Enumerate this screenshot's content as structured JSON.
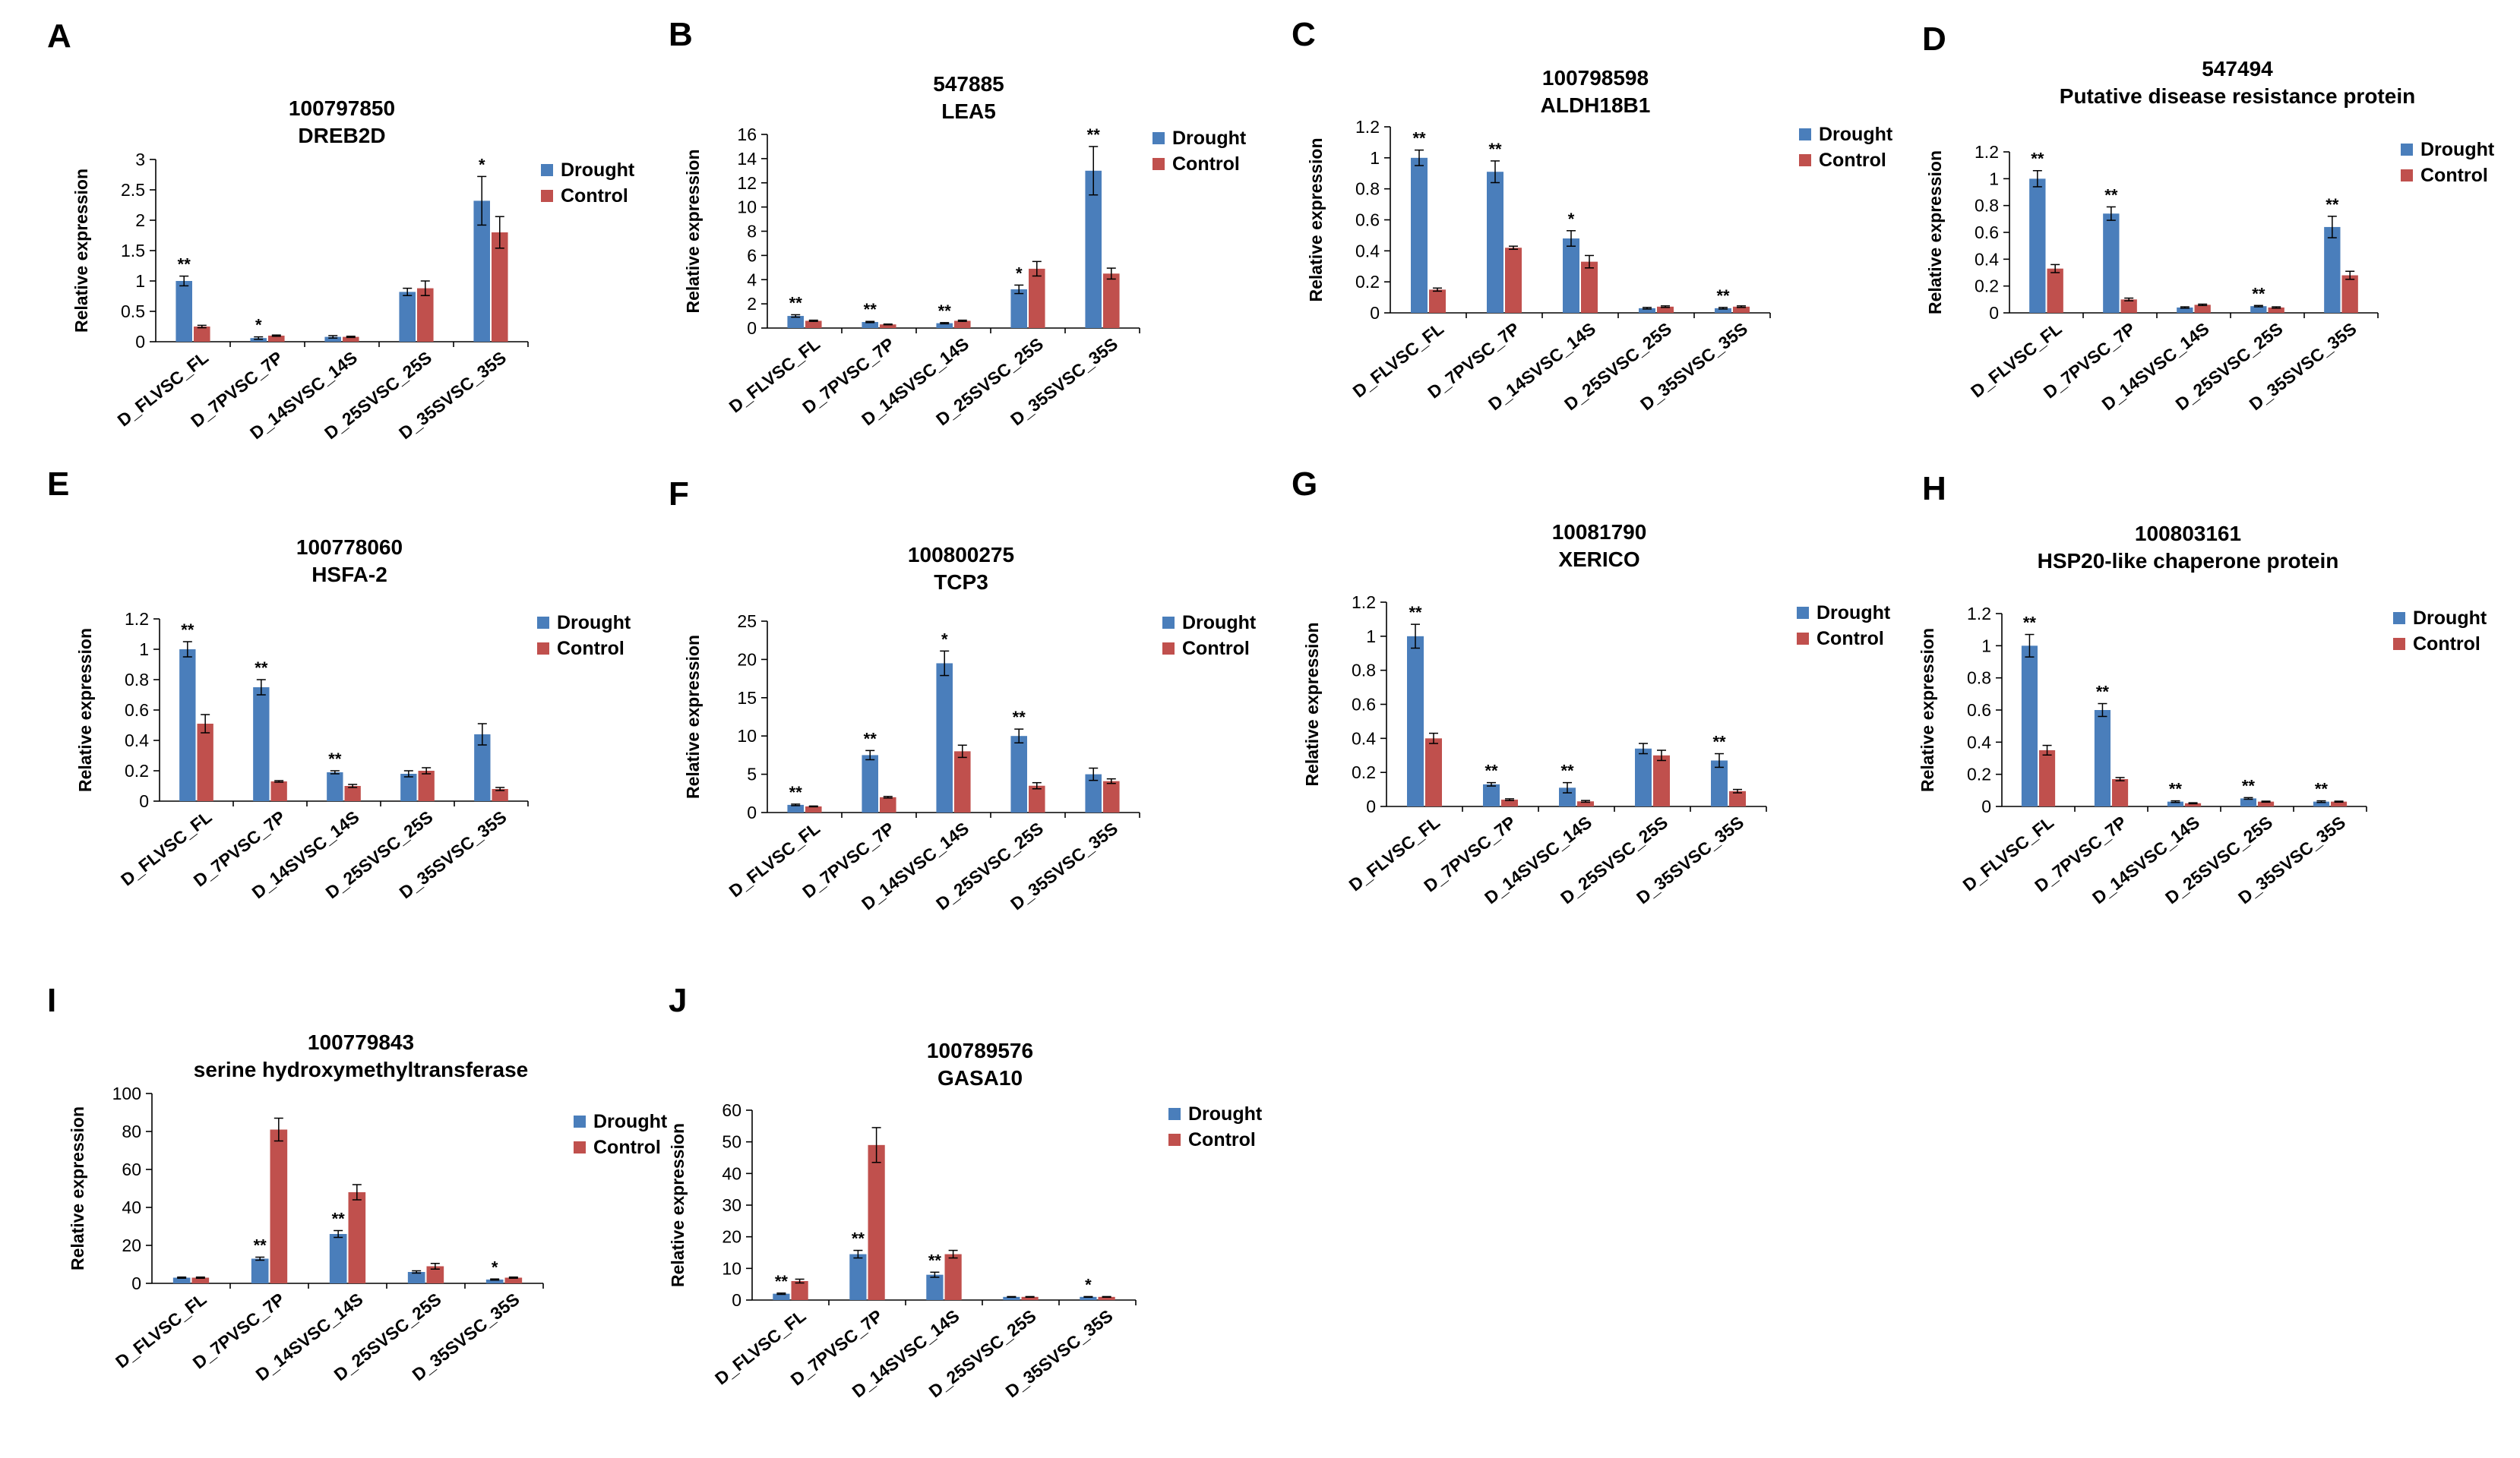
{
  "colors": {
    "drought": "#4a7ebb",
    "control": "#c0504d"
  },
  "chart_data": [
    {
      "panel": "A",
      "type": "bar",
      "title": [
        "100797850",
        "DREB2D"
      ],
      "ylabel": "Relative expression",
      "ylim": [
        0,
        3
      ],
      "yticks": [
        0,
        0.5,
        1,
        1.5,
        2,
        2.5,
        3
      ],
      "categories": [
        "D_FLVSC_FL",
        "D_7PVSC_7P",
        "D_14SVSC_14S",
        "D_25SVSC_25S",
        "D_35SVSC_35S"
      ],
      "legend": "right",
      "series": [
        {
          "name": "Drought",
          "values": [
            1.0,
            0.06,
            0.08,
            0.82,
            2.32
          ],
          "errors": [
            0.08,
            0.02,
            0.02,
            0.06,
            0.4
          ]
        },
        {
          "name": "Control",
          "values": [
            0.25,
            0.1,
            0.08,
            0.88,
            1.8
          ],
          "errors": [
            0.02,
            0.01,
            0.01,
            0.12,
            0.26
          ]
        }
      ],
      "significance": [
        "**",
        "*",
        "",
        "",
        "*"
      ]
    },
    {
      "panel": "B",
      "type": "bar",
      "title": [
        "547885",
        "LEA5"
      ],
      "ylabel": "Relative expression",
      "ylim": [
        0,
        16
      ],
      "yticks": [
        0,
        2,
        4,
        6,
        8,
        10,
        12,
        14,
        16
      ],
      "categories": [
        "D_FLVSC_FL",
        "D_7PVSC_7P",
        "D_14SVSC_14S",
        "D_25SVSC_25S",
        "D_35SVSC_35S"
      ],
      "legend": "right",
      "series": [
        {
          "name": "Drought",
          "values": [
            1.0,
            0.5,
            0.4,
            3.2,
            13.0
          ],
          "errors": [
            0.1,
            0.05,
            0.05,
            0.35,
            2.0
          ]
        },
        {
          "name": "Control",
          "values": [
            0.6,
            0.3,
            0.6,
            4.9,
            4.5
          ],
          "errors": [
            0.05,
            0.03,
            0.05,
            0.6,
            0.45
          ]
        }
      ],
      "significance": [
        "**",
        "**",
        "**",
        "*",
        "**"
      ]
    },
    {
      "panel": "C",
      "type": "bar",
      "title": [
        "100798598",
        "ALDH18B1"
      ],
      "ylabel": "Relative expression",
      "ylim": [
        0,
        1.2
      ],
      "yticks": [
        0,
        0.2,
        0.4,
        0.6,
        0.8,
        1,
        1.2
      ],
      "categories": [
        "D_FLVSC_FL",
        "D_7PVSC_7P",
        "D_14SVSC_14S",
        "D_25SVSC_25S",
        "D_35SVSC_35S"
      ],
      "legend": "right",
      "series": [
        {
          "name": "Drought",
          "values": [
            1.0,
            0.91,
            0.48,
            0.03,
            0.03
          ],
          "errors": [
            0.05,
            0.07,
            0.05,
            0.005,
            0.005
          ]
        },
        {
          "name": "Control",
          "values": [
            0.15,
            0.42,
            0.33,
            0.04,
            0.04
          ],
          "errors": [
            0.01,
            0.01,
            0.04,
            0.005,
            0.005
          ]
        }
      ],
      "significance": [
        "**",
        "**",
        "*",
        "",
        "**"
      ]
    },
    {
      "panel": "D",
      "type": "bar",
      "title": [
        "547494",
        "Putative disease resistance protein"
      ],
      "ylabel": "Relative expression",
      "ylim": [
        0,
        1.2
      ],
      "yticks": [
        0,
        0.2,
        0.4,
        0.6,
        0.8,
        1,
        1.2
      ],
      "categories": [
        "D_FLVSC_FL",
        "D_7PVSC_7P",
        "D_14SVSC_14S",
        "D_25SVSC_25S",
        "D_35SVSC_35S"
      ],
      "legend": "right",
      "series": [
        {
          "name": "Drought",
          "values": [
            1.0,
            0.74,
            0.04,
            0.05,
            0.64
          ],
          "errors": [
            0.06,
            0.05,
            0.005,
            0.005,
            0.08
          ]
        },
        {
          "name": "Control",
          "values": [
            0.33,
            0.1,
            0.06,
            0.04,
            0.28
          ],
          "errors": [
            0.03,
            0.01,
            0.005,
            0.005,
            0.03
          ]
        }
      ],
      "significance": [
        "**",
        "**",
        "",
        "**",
        "**"
      ]
    },
    {
      "panel": "E",
      "type": "bar",
      "title": [
        "100778060",
        "HSFA-2"
      ],
      "ylabel": "Relative expression",
      "ylim": [
        0,
        1.2
      ],
      "yticks": [
        0,
        0.2,
        0.4,
        0.6,
        0.8,
        1,
        1.2
      ],
      "categories": [
        "D_FLVSC_FL",
        "D_7PVSC_7P",
        "D_14SVSC_14S",
        "D_25SVSC_25S",
        "D_35SVSC_35S"
      ],
      "legend": "right",
      "series": [
        {
          "name": "Drought",
          "values": [
            1.0,
            0.75,
            0.19,
            0.18,
            0.44
          ],
          "errors": [
            0.05,
            0.05,
            0.01,
            0.02,
            0.07
          ]
        },
        {
          "name": "Control",
          "values": [
            0.51,
            0.13,
            0.1,
            0.2,
            0.08
          ],
          "errors": [
            0.06,
            0.005,
            0.01,
            0.02,
            0.01
          ]
        }
      ],
      "significance": [
        "**",
        "**",
        "**",
        "",
        ""
      ]
    },
    {
      "panel": "F",
      "type": "bar",
      "title": [
        "100800275",
        "TCP3"
      ],
      "ylabel": "Relative expression",
      "ylim": [
        0,
        25
      ],
      "yticks": [
        0,
        5,
        10,
        15,
        20,
        25
      ],
      "categories": [
        "D_FLVSC_FL",
        "D_7PVSC_7P",
        "D_14SVSC_14S",
        "D_25SVSC_25S",
        "D_35SVSC_35S"
      ],
      "legend": "right",
      "series": [
        {
          "name": "Drought",
          "values": [
            1.0,
            7.5,
            19.5,
            10.0,
            5.0
          ],
          "errors": [
            0.1,
            0.6,
            1.6,
            0.9,
            0.8
          ]
        },
        {
          "name": "Control",
          "values": [
            0.8,
            2.0,
            8.0,
            3.5,
            4.1
          ],
          "errors": [
            0.05,
            0.1,
            0.8,
            0.4,
            0.3
          ]
        }
      ],
      "significance": [
        "**",
        "**",
        "*",
        "**",
        ""
      ]
    },
    {
      "panel": "G",
      "type": "bar",
      "title": [
        "10081790",
        "XERICO"
      ],
      "ylabel": "Relative expression",
      "ylim": [
        0,
        1.2
      ],
      "yticks": [
        0,
        0.2,
        0.4,
        0.6,
        0.8,
        1,
        1.2
      ],
      "categories": [
        "D_FLVSC_FL",
        "D_7PVSC_7P",
        "D_14SVSC_14S",
        "D_25SVSC_25S",
        "D_35SVSC_35S"
      ],
      "legend": "right",
      "series": [
        {
          "name": "Drought",
          "values": [
            1.0,
            0.13,
            0.11,
            0.34,
            0.27
          ],
          "errors": [
            0.07,
            0.01,
            0.03,
            0.03,
            0.04
          ]
        },
        {
          "name": "Control",
          "values": [
            0.4,
            0.04,
            0.03,
            0.3,
            0.09
          ],
          "errors": [
            0.03,
            0.005,
            0.005,
            0.03,
            0.01
          ]
        }
      ],
      "significance": [
        "**",
        "**",
        "**",
        "",
        "**"
      ]
    },
    {
      "panel": "H",
      "type": "bar",
      "title": [
        "100803161",
        "HSP20-like chaperone protein"
      ],
      "ylabel": "Relative expression",
      "ylim": [
        0,
        1.2
      ],
      "yticks": [
        0,
        0.2,
        0.4,
        0.6,
        0.8,
        1,
        1.2
      ],
      "categories": [
        "D_FLVSC_FL",
        "D_7PVSC_7P",
        "D_14SVSC_14S",
        "D_25SVSC_25S",
        "D_35SVSC_35S"
      ],
      "legend": "right",
      "series": [
        {
          "name": "Drought",
          "values": [
            1.0,
            0.6,
            0.03,
            0.05,
            0.03
          ],
          "errors": [
            0.07,
            0.04,
            0.005,
            0.005,
            0.005
          ]
        },
        {
          "name": "Control",
          "values": [
            0.35,
            0.17,
            0.02,
            0.03,
            0.03
          ],
          "errors": [
            0.03,
            0.01,
            0.003,
            0.003,
            0.003
          ]
        }
      ],
      "significance": [
        "**",
        "**",
        "**",
        "**",
        "**"
      ]
    },
    {
      "panel": "I",
      "type": "bar",
      "title": [
        "100779843",
        "serine hydroxymethyltransferase"
      ],
      "ylabel": "Relative expression",
      "ylim": [
        0,
        100
      ],
      "yticks": [
        0,
        20,
        40,
        60,
        80,
        100
      ],
      "categories": [
        "D_FLVSC_FL",
        "D_7PVSC_7P",
        "D_14SVSC_14S",
        "D_25SVSC_25S",
        "D_35SVSC_35S"
      ],
      "legend": "right",
      "series": [
        {
          "name": "Drought",
          "values": [
            3.0,
            13.0,
            26.0,
            6.0,
            2.0
          ],
          "errors": [
            0.3,
            0.8,
            1.8,
            0.6,
            0.3
          ]
        },
        {
          "name": "Control",
          "values": [
            3.0,
            81.0,
            48.0,
            9.0,
            3.0
          ],
          "errors": [
            0.3,
            6.0,
            4.0,
            1.5,
            0.3
          ]
        }
      ],
      "significance": [
        "",
        "**",
        "**",
        "",
        "*"
      ]
    },
    {
      "panel": "J",
      "type": "bar",
      "title": [
        "100789576",
        "GASA10"
      ],
      "ylabel": "Relative expression",
      "ylim": [
        0,
        60
      ],
      "yticks": [
        0,
        10,
        20,
        30,
        40,
        50,
        60
      ],
      "categories": [
        "D_FLVSC_FL",
        "D_7PVSC_7P",
        "D_14SVSC_14S",
        "D_25SVSC_25S",
        "D_35SVSC_35S"
      ],
      "legend": "right",
      "series": [
        {
          "name": "Drought",
          "values": [
            2.0,
            14.5,
            8.0,
            1.0,
            1.0
          ],
          "errors": [
            0.2,
            1.2,
            0.8,
            0.1,
            0.1
          ]
        },
        {
          "name": "Control",
          "values": [
            6.0,
            49.0,
            14.5,
            1.0,
            1.0
          ],
          "errors": [
            0.6,
            5.5,
            1.2,
            0.1,
            0.1
          ]
        }
      ],
      "significance": [
        "**",
        "**",
        "**",
        "",
        "*"
      ]
    }
  ]
}
